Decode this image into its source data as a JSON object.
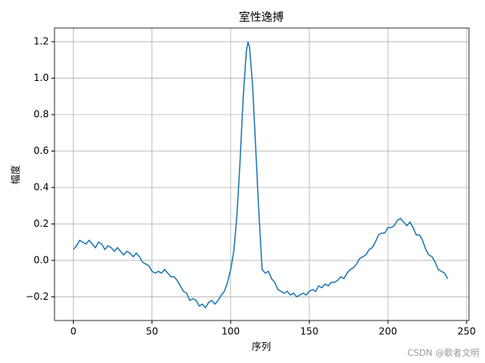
{
  "chart_data": {
    "type": "line",
    "title": "室性逸搏",
    "x_label": "序列",
    "y_label": "幅度",
    "x": [
      0,
      2,
      4,
      6,
      8,
      10,
      12,
      14,
      16,
      18,
      20,
      22,
      24,
      26,
      28,
      30,
      32,
      34,
      36,
      38,
      40,
      42,
      44,
      46,
      48,
      50,
      52,
      54,
      56,
      58,
      60,
      62,
      64,
      66,
      68,
      70,
      72,
      74,
      76,
      78,
      80,
      82,
      84,
      86,
      88,
      90,
      92,
      94,
      96,
      98,
      100,
      102,
      104,
      106,
      108,
      110,
      111,
      112,
      114,
      116,
      118,
      120,
      122,
      124,
      126,
      128,
      130,
      132,
      134,
      136,
      138,
      140,
      142,
      144,
      146,
      148,
      150,
      152,
      154,
      156,
      158,
      160,
      162,
      164,
      166,
      168,
      170,
      172,
      174,
      176,
      178,
      180,
      182,
      184,
      186,
      188,
      190,
      192,
      194,
      196,
      198,
      200,
      202,
      204,
      206,
      208,
      210,
      212,
      214,
      216,
      218,
      220,
      222,
      224,
      226,
      228,
      230,
      232,
      234,
      236,
      238
    ],
    "series": [
      {
        "color": "#1f77b4",
        "values": [
          0.06,
          0.08,
          0.11,
          0.1,
          0.09,
          0.11,
          0.09,
          0.07,
          0.1,
          0.09,
          0.06,
          0.08,
          0.07,
          0.05,
          0.07,
          0.05,
          0.03,
          0.05,
          0.04,
          0.02,
          0.04,
          0.02,
          -0.01,
          -0.02,
          -0.03,
          -0.06,
          -0.07,
          -0.06,
          -0.07,
          -0.05,
          -0.07,
          -0.09,
          -0.09,
          -0.11,
          -0.14,
          -0.17,
          -0.18,
          -0.22,
          -0.21,
          -0.22,
          -0.25,
          -0.24,
          -0.26,
          -0.23,
          -0.22,
          -0.24,
          -0.22,
          -0.19,
          -0.17,
          -0.12,
          -0.05,
          0.05,
          0.25,
          0.55,
          0.9,
          1.15,
          1.2,
          1.17,
          0.95,
          0.6,
          0.25,
          -0.05,
          -0.07,
          -0.06,
          -0.1,
          -0.12,
          -0.16,
          -0.17,
          -0.18,
          -0.17,
          -0.19,
          -0.18,
          -0.2,
          -0.19,
          -0.18,
          -0.19,
          -0.17,
          -0.16,
          -0.17,
          -0.14,
          -0.15,
          -0.13,
          -0.14,
          -0.12,
          -0.12,
          -0.11,
          -0.09,
          -0.1,
          -0.07,
          -0.05,
          -0.04,
          -0.02,
          0.01,
          0.02,
          0.03,
          0.06,
          0.07,
          0.1,
          0.14,
          0.15,
          0.15,
          0.18,
          0.18,
          0.19,
          0.22,
          0.23,
          0.21,
          0.19,
          0.21,
          0.18,
          0.14,
          0.14,
          0.11,
          0.06,
          0.03,
          0.02,
          -0.01,
          -0.05,
          -0.06,
          -0.07,
          -0.1
        ]
      }
    ],
    "xlim": [
      -12,
      251.5
    ],
    "ylim": [
      -0.33,
      1.275
    ],
    "xticks": [
      0,
      50,
      100,
      150,
      200,
      250
    ],
    "yticks": [
      {
        "value": -0.2,
        "label": "−0.2"
      },
      {
        "value": 0,
        "label": "0.0"
      },
      0.2,
      0.4,
      0.6,
      0.8,
      {
        "value": 1,
        "label": "1.0"
      },
      1.2
    ],
    "grid": true
  },
  "watermark": "CSDN @歌者文明"
}
